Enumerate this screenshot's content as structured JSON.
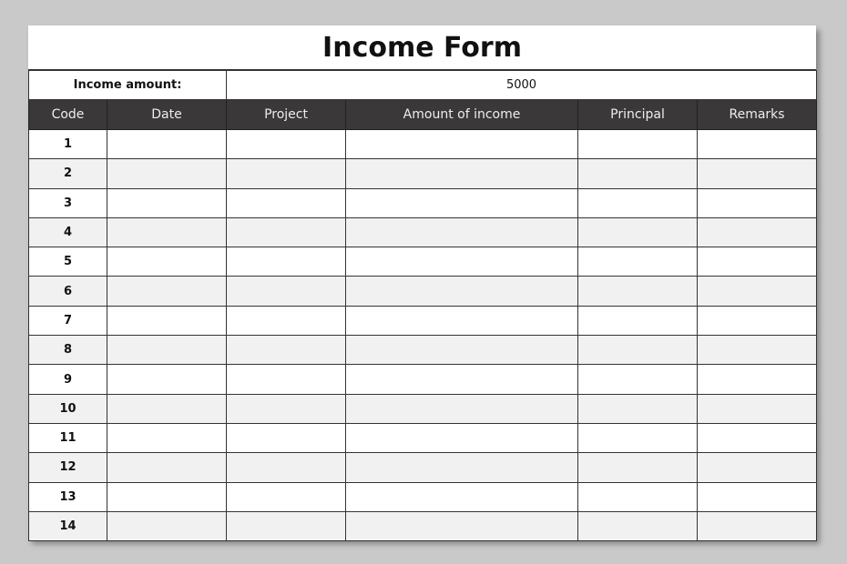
{
  "title": "Income Form",
  "income_amount_label": "Income amount:",
  "income_amount_value": "5000",
  "columns": [
    "Code",
    "Date",
    "Project",
    "Amount of income",
    "Principal",
    "Remarks"
  ],
  "rows": [
    "1",
    "2",
    "3",
    "4",
    "5",
    "6",
    "7",
    "8",
    "9",
    "10",
    "11",
    "12",
    "13",
    "14"
  ],
  "colors": {
    "header_bg": "#3a3838",
    "alt_row": "#f1f1f1",
    "background": "#c9c9c9"
  }
}
